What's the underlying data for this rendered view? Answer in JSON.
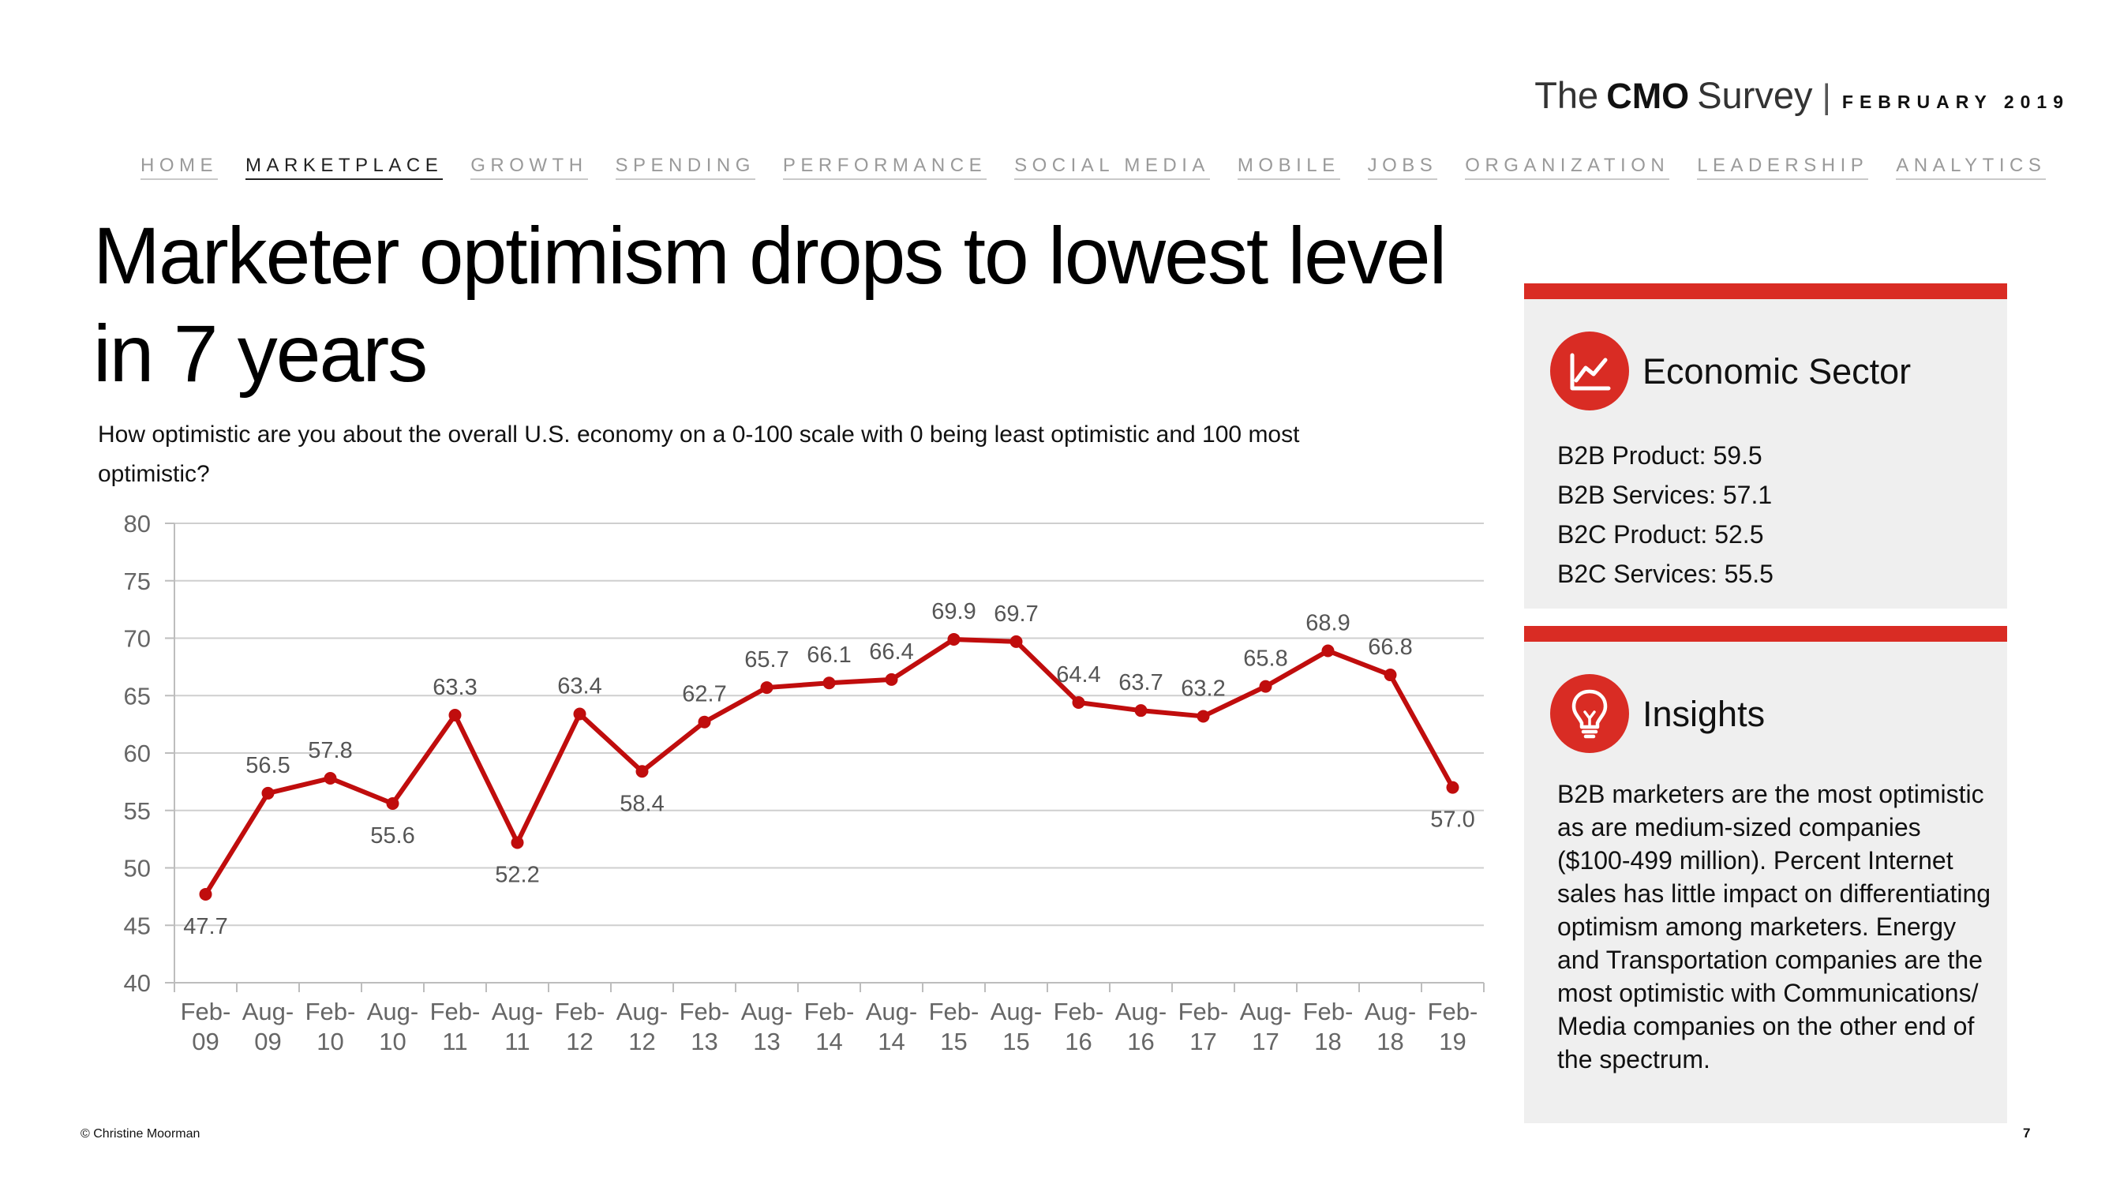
{
  "brand": {
    "the": "The",
    "cmo": "CMO",
    "survey": "Survey",
    "divider": "|",
    "date": "FEBRUARY 2019"
  },
  "nav": [
    "HOME",
    "MARKETPLACE",
    "GROWTH",
    "SPENDING",
    "PERFORMANCE",
    "SOCIAL MEDIA",
    "MOBILE",
    "JOBS",
    "ORGANIZATION",
    "LEADERSHIP",
    "ANALYTICS"
  ],
  "nav_active": "MARKETPLACE",
  "title": "Marketer optimism drops to lowest level in 7 years",
  "question": "How optimistic are you about the overall U.S. economy on a 0-100 scale with 0 being least optimistic and 100 most optimistic?",
  "chart_data": {
    "type": "line",
    "categories": [
      [
        "Feb-",
        "09"
      ],
      [
        "Aug-",
        "09"
      ],
      [
        "Feb-",
        "10"
      ],
      [
        "Aug-",
        "10"
      ],
      [
        "Feb-",
        "11"
      ],
      [
        "Aug-",
        "11"
      ],
      [
        "Feb-",
        "12"
      ],
      [
        "Aug-",
        "12"
      ],
      [
        "Feb-",
        "13"
      ],
      [
        "Aug-",
        "13"
      ],
      [
        "Feb-",
        "14"
      ],
      [
        "Aug-",
        "14"
      ],
      [
        "Feb-",
        "15"
      ],
      [
        "Aug-",
        "15"
      ],
      [
        "Feb-",
        "16"
      ],
      [
        "Aug-",
        "16"
      ],
      [
        "Feb-",
        "17"
      ],
      [
        "Aug-",
        "17"
      ],
      [
        "Feb-",
        "18"
      ],
      [
        "Aug-",
        "18"
      ],
      [
        "Feb-",
        "19"
      ]
    ],
    "values": [
      47.7,
      56.5,
      57.8,
      55.6,
      63.3,
      52.2,
      63.4,
      58.4,
      62.7,
      65.7,
      66.1,
      66.4,
      69.9,
      69.7,
      64.4,
      63.7,
      63.2,
      65.8,
      68.9,
      66.8,
      57.0
    ],
    "value_labels": [
      "47.7",
      "56.5",
      "57.8",
      "55.6",
      "63.3",
      "52.2",
      "63.4",
      "58.4",
      "62.7",
      "65.7",
      "66.1",
      "66.4",
      "69.9",
      "69.7",
      "64.4",
      "63.7",
      "63.2",
      "65.8",
      "68.9",
      "66.8",
      "57.0"
    ],
    "label_positions": [
      "below",
      "above",
      "above",
      "below",
      "above",
      "below",
      "above",
      "below",
      "above",
      "above",
      "above",
      "above",
      "above",
      "above",
      "above",
      "above",
      "above",
      "above",
      "above",
      "above",
      "below"
    ],
    "yticks": [
      40,
      45,
      50,
      55,
      60,
      65,
      70,
      75,
      80
    ],
    "ylim": [
      40,
      80
    ],
    "title": "",
    "xlabel": "",
    "ylabel": "",
    "grid": true,
    "color": "#c00d0d"
  },
  "economic_sector": {
    "title": "Economic Sector",
    "icon": "line-chart-icon",
    "items": [
      "B2B Product: 59.5",
      "B2B Services: 57.1",
      "B2C Product: 52.5",
      "B2C Services: 55.5"
    ]
  },
  "insights": {
    "title": "Insights",
    "icon": "lightbulb-icon",
    "text": "B2B marketers are the most optimistic as are medium-sized companies ($100-499 million). Percent Internet sales has little impact on differentiating optimism among marketers. Energy and Transportation companies are the most optimistic with Communications/ Media companies on the other end of the spectrum."
  },
  "footer": "© Christine Moorman",
  "page_number": "7",
  "colors": {
    "accent": "#d92c24",
    "line": "#c00d0d",
    "panel_bg": "#efefef"
  }
}
